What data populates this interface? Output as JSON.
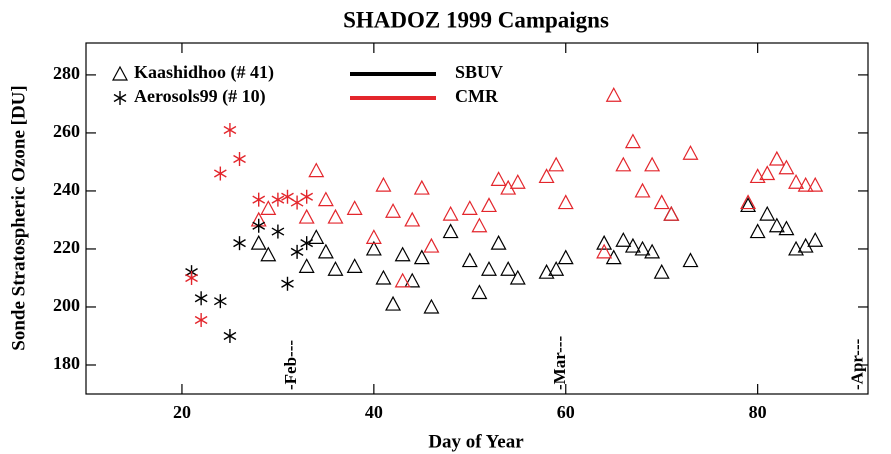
{
  "chart_data": {
    "type": "scatter",
    "title": "SHADOZ 1999 Campaigns",
    "xlabel": "Day of Year",
    "ylabel": "Sonde Stratospheric Ozone [DU]",
    "xlim": [
      10,
      91.5
    ],
    "ylim": [
      170,
      291
    ],
    "xticks": [
      20,
      40,
      60,
      80
    ],
    "yticks": [
      180,
      200,
      220,
      240,
      260,
      280
    ],
    "legend_markers": [
      {
        "name": "Kaashidhoo (# 41)",
        "marker": "triangle"
      },
      {
        "name": "Aerosols99 (# 10)",
        "marker": "asterisk"
      }
    ],
    "legend_colors": [
      {
        "name": "SBUV",
        "color": "#000000"
      },
      {
        "name": "CMR",
        "color": "#e3262c"
      }
    ],
    "annotations": [
      {
        "text": "-Feb---",
        "x": 31.5
      },
      {
        "text": "-Mar---",
        "x": 59.5
      },
      {
        "text": "-Apr---",
        "x": 90.5
      }
    ],
    "series": [
      {
        "marker": "triangle",
        "color": "#000000",
        "x": [
          28,
          29,
          33,
          34,
          35,
          36,
          38,
          40,
          41,
          42,
          43,
          44,
          45,
          46,
          48,
          50,
          51,
          52,
          53,
          54,
          55,
          58,
          59,
          60,
          64,
          65,
          66,
          67,
          68,
          69,
          70,
          71,
          73,
          79,
          80,
          81,
          82,
          83,
          84,
          85,
          86
        ],
        "values": [
          222,
          218,
          214,
          224,
          219,
          213,
          214,
          220,
          210,
          201,
          218,
          209,
          217,
          200,
          226,
          216,
          205,
          213,
          222,
          213,
          210,
          212,
          213,
          217,
          222,
          217,
          223,
          221,
          220,
          219,
          212,
          232,
          216,
          235,
          226,
          232,
          228,
          227,
          220,
          221,
          223
        ]
      },
      {
        "marker": "triangle",
        "color": "#e3262c",
        "x": [
          28,
          29,
          33,
          34,
          35,
          36,
          38,
          40,
          41,
          42,
          43,
          44,
          45,
          46,
          48,
          50,
          51,
          52,
          53,
          54,
          55,
          58,
          59,
          60,
          64,
          65,
          66,
          67,
          68,
          69,
          70,
          71,
          73,
          79,
          80,
          81,
          82,
          83,
          84,
          85,
          86
        ],
        "values": [
          230,
          234,
          231,
          247,
          237,
          231,
          234,
          224,
          242,
          233,
          209,
          230,
          241,
          221,
          232,
          234,
          228,
          235,
          244,
          241,
          243,
          245,
          249,
          236,
          219,
          273,
          249,
          257,
          240,
          249,
          236,
          232,
          253,
          236,
          245,
          246,
          251,
          248,
          243,
          242,
          242
        ]
      },
      {
        "marker": "asterisk",
        "color": "#000000",
        "x": [
          21,
          22,
          24,
          25,
          26,
          28,
          30,
          31,
          32,
          33
        ],
        "values": [
          212,
          203,
          202,
          190,
          222,
          228,
          226,
          208,
          219,
          222
        ]
      },
      {
        "marker": "asterisk",
        "color": "#e3262c",
        "x": [
          21,
          22,
          24,
          25,
          26,
          28,
          30,
          31,
          32,
          33
        ],
        "values": [
          210,
          195.5,
          246,
          261,
          251,
          237,
          237,
          238,
          236,
          238
        ]
      }
    ]
  }
}
